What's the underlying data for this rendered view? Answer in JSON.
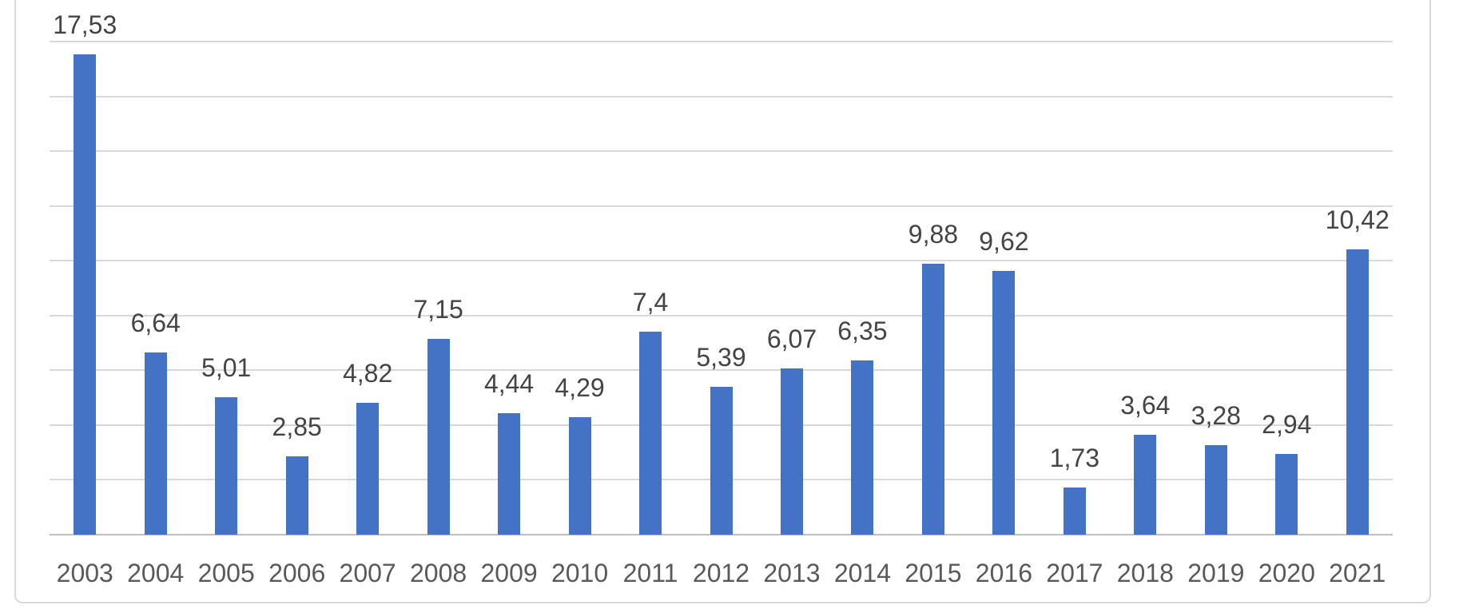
{
  "chart_data": {
    "type": "bar",
    "title": "",
    "xlabel": "",
    "ylabel": "",
    "categories": [
      "2003",
      "2004",
      "2005",
      "2006",
      "2007",
      "2008",
      "2009",
      "2010",
      "2011",
      "2012",
      "2013",
      "2014",
      "2015",
      "2016",
      "2017",
      "2018",
      "2019",
      "2020",
      "2021"
    ],
    "values": [
      17.53,
      6.64,
      5.01,
      2.85,
      4.82,
      7.15,
      4.44,
      4.29,
      7.4,
      5.39,
      6.07,
      6.35,
      9.88,
      9.62,
      1.73,
      3.64,
      3.28,
      2.94,
      10.42
    ],
    "value_labels": [
      "17,53",
      "6,64",
      "5,01",
      "2,85",
      "4,82",
      "7,15",
      "4,44",
      "4,29",
      "7,4",
      "5,39",
      "6,07",
      "6,35",
      "9,88",
      "9,62",
      "1,73",
      "3,64",
      "3,28",
      "2,94",
      "10,42"
    ],
    "decimal_separator": ",",
    "ylim": [
      0,
      18
    ],
    "grid": true,
    "grid_interval": 2,
    "y_axis_labels_visible": false,
    "legend": "none",
    "colors": {
      "bar": "#4472C4",
      "gridline": "#D9D9D9",
      "axis_line": "#BFBFBF",
      "chart_border": "#D9D9D9",
      "data_label_text": "#444444",
      "tick_label_text": "#595959",
      "background": "#FFFFFF"
    }
  }
}
